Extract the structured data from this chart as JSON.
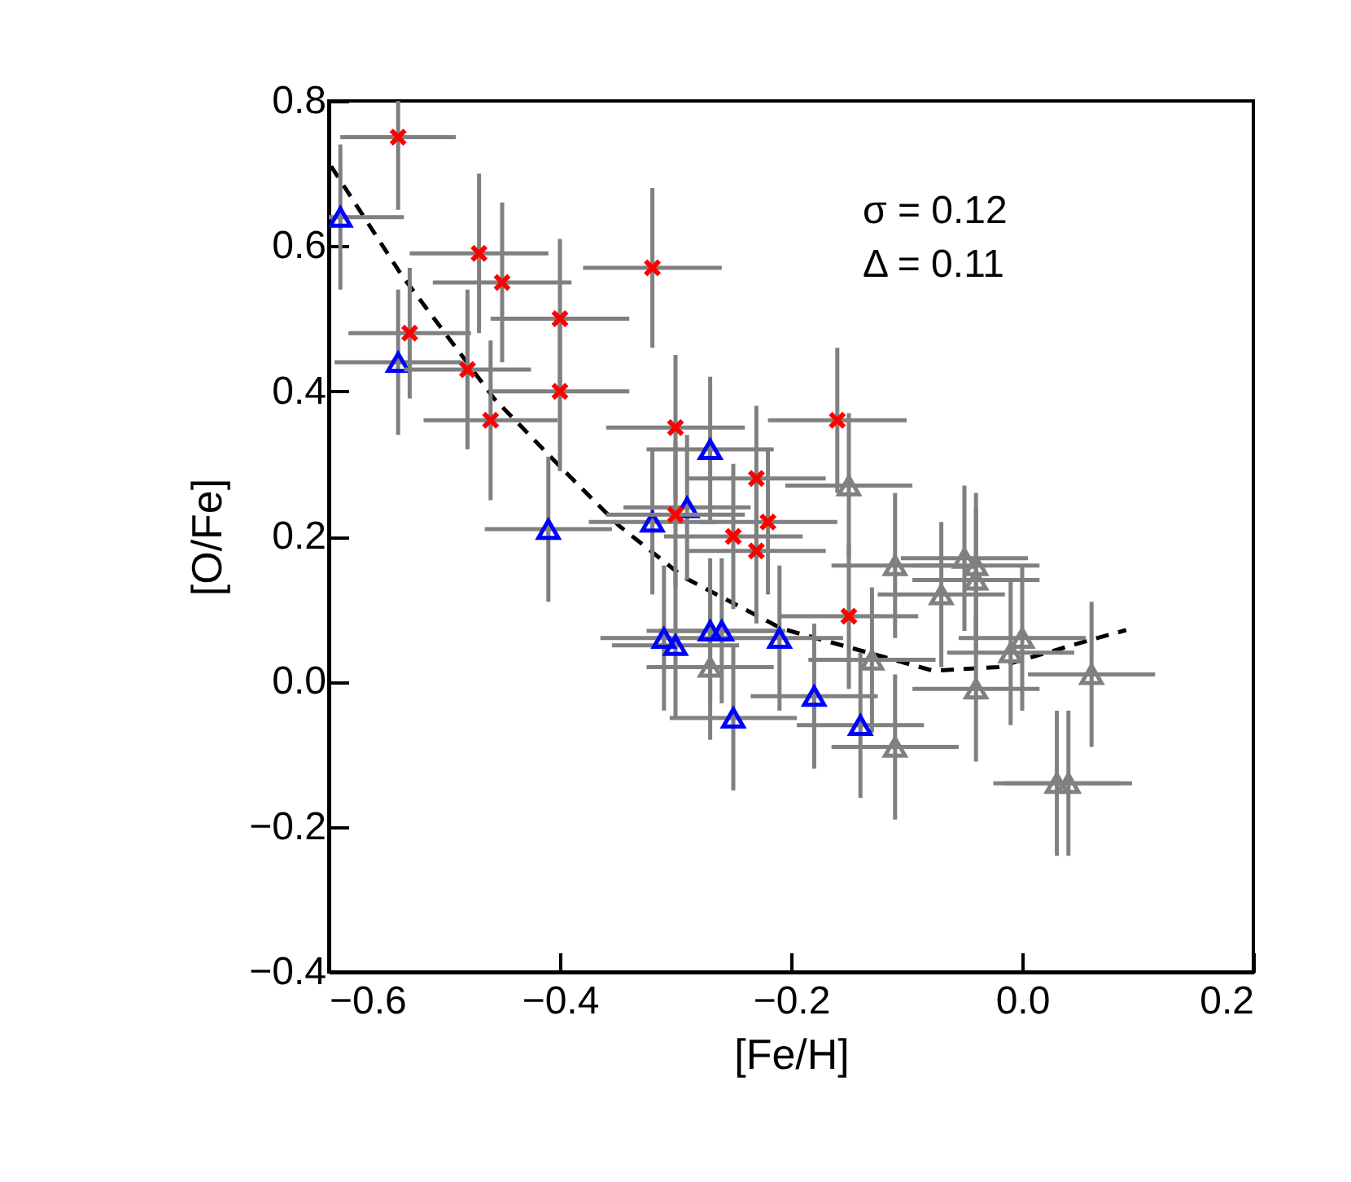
{
  "chart_data": {
    "type": "scatter",
    "xlabel": "[Fe/H]",
    "ylabel": "[O/Fe]",
    "xlim": [
      -0.6,
      0.2
    ],
    "ylim": [
      -0.4,
      0.8
    ],
    "xticks": [
      -0.6,
      -0.4,
      -0.2,
      {
        "value": 0,
        "label": "0.0"
      },
      0.2
    ],
    "yticks": [
      -0.4,
      -0.2,
      {
        "value": 0,
        "label": "0.0"
      },
      0.2,
      0.4,
      0.6,
      0.8
    ],
    "grid": false,
    "annotations": [
      "σ  =  0.12",
      "Δ  =  0.11"
    ],
    "series": [
      {
        "type": "line",
        "color": "#000000",
        "line_style": "dashed",
        "marker": "none",
        "x": [
          -0.598,
          -0.537,
          -0.457,
          -0.396,
          -0.349,
          -0.293,
          -0.208,
          -0.077,
          -0.021,
          0.06,
          0.09
        ],
        "values": [
          0.71,
          0.56,
          0.39,
          0.29,
          0.215,
          0.144,
          0.073,
          0.015,
          0.02,
          0.058,
          0.071
        ]
      },
      {
        "color": "#808080",
        "marker": "triangle",
        "x": [
          -0.27,
          -0.15,
          -0.11,
          -0.13,
          -0.11,
          -0.07,
          -0.05,
          -0.04,
          -0.04,
          -0.04,
          -0.01,
          0.0,
          0.06,
          0.03,
          0.04
        ],
        "values": [
          0.02,
          0.27,
          0.16,
          0.03,
          -0.09,
          0.12,
          0.17,
          0.16,
          0.14,
          -0.01,
          0.04,
          0.06,
          0.01,
          -0.14,
          -0.14
        ],
        "errors": [
          0.1,
          0.1,
          0.1,
          0.1,
          0.1,
          0.1,
          0.1,
          0.1,
          0.1,
          0.1,
          0.1,
          0.1,
          0.1,
          0.1,
          0.1
        ],
        "xerrors": [
          0.055,
          0.055,
          0.055,
          0.055,
          0.055,
          0.055,
          0.055,
          0.055,
          0.055,
          0.055,
          0.055,
          0.055,
          0.055,
          0.055,
          0.055
        ]
      },
      {
        "color": "#0000ff",
        "marker": "triangle",
        "x": [
          -0.59,
          -0.54,
          -0.41,
          -0.32,
          -0.27,
          -0.29,
          -0.31,
          -0.3,
          -0.27,
          -0.26,
          -0.21,
          -0.25,
          -0.18,
          -0.14
        ],
        "values": [
          0.64,
          0.44,
          0.21,
          0.22,
          0.32,
          0.24,
          0.06,
          0.05,
          0.07,
          0.07,
          0.06,
          -0.05,
          -0.02,
          -0.06
        ],
        "errors": [
          0.1,
          0.1,
          0.1,
          0.1,
          0.1,
          0.1,
          0.1,
          0.1,
          0.1,
          0.1,
          0.1,
          0.1,
          0.1,
          0.1
        ],
        "xerrors": [
          0.055,
          0.055,
          0.055,
          0.055,
          0.055,
          0.055,
          0.055,
          0.055,
          0.055,
          0.055,
          0.055,
          0.055,
          0.055,
          0.055
        ]
      },
      {
        "color": "#ff0000",
        "marker": "cross",
        "x": [
          -0.54,
          -0.47,
          -0.45,
          -0.4,
          -0.32,
          -0.53,
          -0.48,
          -0.4,
          -0.46,
          -0.3,
          -0.16,
          -0.23,
          -0.22,
          -0.25,
          -0.23,
          -0.15,
          -0.3
        ],
        "values": [
          0.75,
          0.59,
          0.55,
          0.5,
          0.57,
          0.48,
          0.43,
          0.4,
          0.36,
          0.35,
          0.36,
          0.28,
          0.22,
          0.2,
          0.18,
          0.09,
          0.23
        ],
        "errors": [
          0.1,
          0.11,
          0.11,
          0.11,
          0.11,
          0.09,
          0.11,
          0.11,
          0.11,
          0.1,
          0.1,
          0.1,
          0.1,
          0.1,
          0.1,
          0.1,
          0.1
        ],
        "xerrors": [
          0.05,
          0.06,
          0.06,
          0.06,
          0.06,
          0.053,
          0.055,
          0.06,
          0.058,
          0.06,
          0.06,
          0.06,
          0.06,
          0.06,
          0.06,
          0.06,
          0.06
        ]
      }
    ]
  }
}
